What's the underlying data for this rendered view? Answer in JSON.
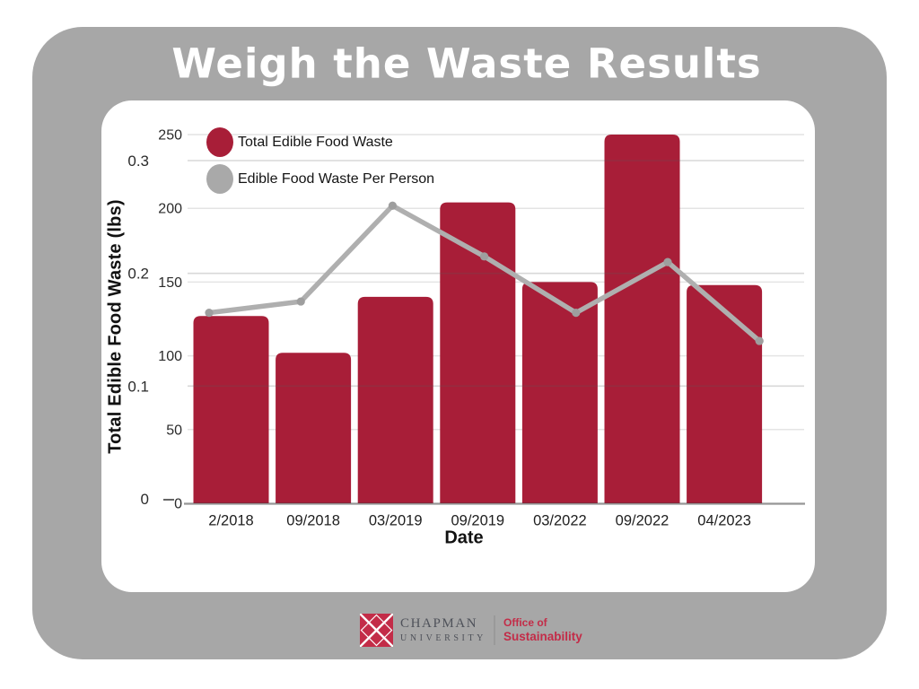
{
  "chart_data": {
    "type": "bar",
    "title": "Weigh the Waste Results",
    "xlabel": "Date",
    "ylabel": "Total Edible Food Waste (lbs)",
    "categories": [
      "2/2018",
      "09/2018",
      "03/2019",
      "09/2019",
      "03/2022",
      "09/2022",
      "04/2023"
    ],
    "series": [
      {
        "name": "Total Edible Food Waste",
        "type": "bar",
        "axis": "inner-left",
        "units": "lbs",
        "color": "#a81e38",
        "values": [
          127,
          102,
          140,
          204,
          150,
          250,
          148
        ]
      },
      {
        "name": "Edible Food Waste Per Person",
        "type": "line",
        "axis": "outer-left",
        "units": "lbs per person",
        "color": "#afafaf",
        "values": [
          0.165,
          0.175,
          0.26,
          0.215,
          0.165,
          0.21,
          0.14
        ]
      }
    ],
    "bar_axis": {
      "lim": [
        0,
        250
      ],
      "ticks": [
        0,
        50,
        100,
        150,
        200,
        250
      ],
      "tick_labels": [
        "0",
        "50",
        "100",
        "150",
        "200",
        "250"
      ]
    },
    "line_axis": {
      "lim": [
        0,
        0.3
      ],
      "ticks": [
        0,
        0.1,
        0.2,
        0.3
      ],
      "tick_labels": [
        "0",
        "0.1",
        "0.2",
        "0.3"
      ]
    },
    "grid": true,
    "legend_position": "top-left-inside"
  },
  "colors": {
    "panel_gray": "#a7a7a7",
    "bar_red": "#a81e38",
    "line_gray": "#afafaf",
    "marker_gray": "#9e9e9e",
    "gridline": "#e4e4e4",
    "logo_red": "#c32c48",
    "logo_slate": "#4f525a"
  },
  "footer": {
    "logo": {
      "institution": "CHAPMAN",
      "institution_sub": "UNIVERSITY",
      "office_line1": "Office of",
      "office_line2": "Sustainability"
    }
  }
}
